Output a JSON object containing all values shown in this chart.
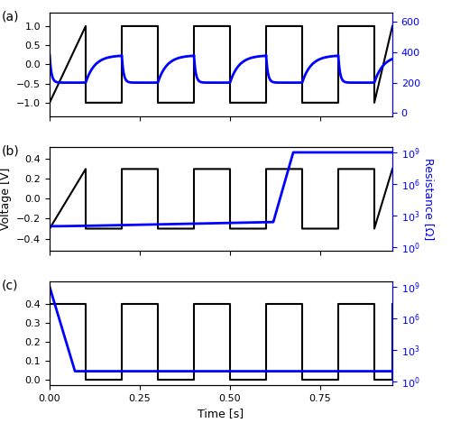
{
  "fig_width": 5.0,
  "fig_height": 4.69,
  "dpi": 100,
  "time_label": "Time [s]",
  "voltage_label": "Voltage [V]",
  "resistance_label": "Resistance [Ω]",
  "panel_a": {
    "ylim_voltage": [
      -1.35,
      1.35
    ],
    "yticks_voltage": [
      -1.0,
      -0.5,
      0.0,
      0.5,
      1.0
    ],
    "ylim_resistance": [
      -20,
      660
    ],
    "yticks_resistance": [
      0,
      200,
      400,
      600
    ],
    "xlim": [
      0.0,
      0.95
    ],
    "xticks": [
      0.0,
      0.25,
      0.5,
      0.75
    ]
  },
  "panel_b": {
    "ylim_voltage": [
      -0.52,
      0.52
    ],
    "yticks_voltage": [
      -0.4,
      -0.2,
      0.0,
      0.2,
      0.4
    ],
    "xlim": [
      0.0,
      0.95
    ],
    "xticks": [
      0.0,
      0.25,
      0.5,
      0.75
    ]
  },
  "panel_c": {
    "ylim_voltage": [
      -0.03,
      0.52
    ],
    "yticks_voltage": [
      0.0,
      0.1,
      0.2,
      0.3,
      0.4
    ],
    "xlim": [
      0.0,
      0.95
    ],
    "xticks": [
      0.0,
      0.25,
      0.5,
      0.75
    ]
  },
  "colors": {
    "voltage": "black",
    "resistance": "blue"
  },
  "linewidth_voltage": 1.5,
  "linewidth_resistance": 2.0
}
